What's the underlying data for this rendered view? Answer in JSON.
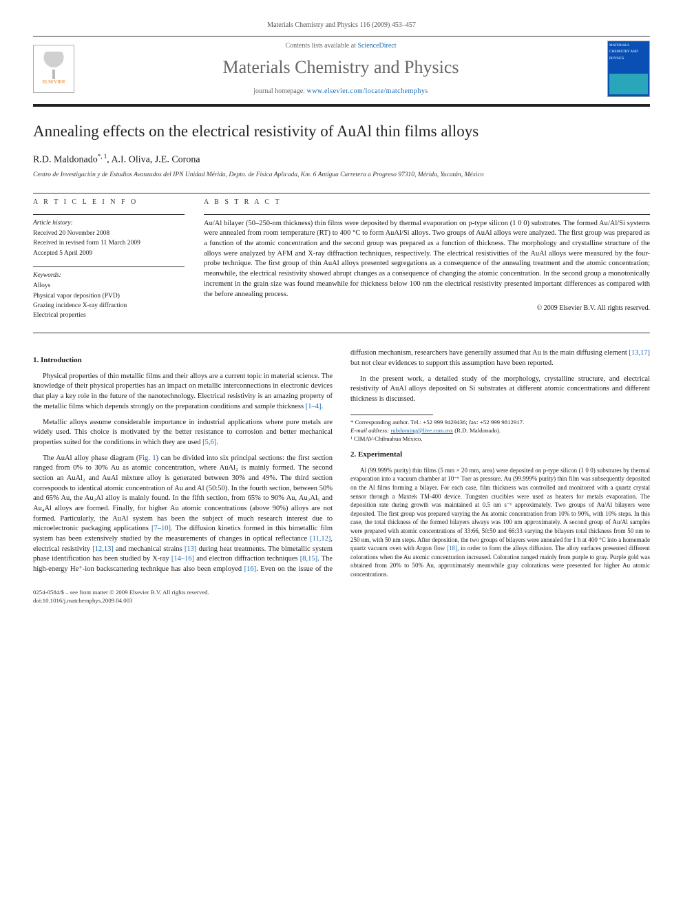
{
  "running_header": "Materials Chemistry and Physics 116 (2009) 453–457",
  "masthead": {
    "publisher_name": "ELSEVIER",
    "contents_prefix": "Contents lists available at ",
    "contents_link": "ScienceDirect",
    "journal_name": "Materials Chemistry and Physics",
    "homepage_prefix": "journal homepage: ",
    "homepage_url": "www.elsevier.com/locate/matchemphys",
    "cover_title_top": "MATERIALS",
    "cover_title_mid": "CHEMISTRY AND",
    "cover_title_bot": "PHYSICS"
  },
  "article": {
    "title": "Annealing effects on the electrical resistivity of AuAl thin films alloys",
    "authors_html": "R.D. Maldonado",
    "author_sup1": "*, 1",
    "author2": ", A.I. Oliva, J.E. Corona",
    "affiliation": "Centro de Investigación y de Estudios Avanzados del IPN Unidad Mérida, Depto. de Física Aplicada, Km. 6 Antigua Carretera a Progreso 97310, Mérida, Yucatán, México"
  },
  "info": {
    "section_label": "a r t i c l e   i n f o",
    "history_label": "Article history:",
    "received": "Received 20 November 2008",
    "revised": "Received in revised form 11 March 2009",
    "accepted": "Accepted 5 April 2009",
    "keywords_label": "Keywords:",
    "kw1": "Alloys",
    "kw2": "Physical vapor deposition (PVD)",
    "kw3": "Grazing incidence X-ray diffraction",
    "kw4": "Electrical properties"
  },
  "abstract": {
    "section_label": "a b s t r a c t",
    "text": "Au/Al bilayer (50–250-nm thickness) thin films were deposited by thermal evaporation on p-type silicon (1 0 0) substrates. The formed Au/Al/Si systems were annealed from room temperature (RT) to 400 °C to form AuAl/Si alloys. Two groups of AuAl alloys were analyzed. The first group was prepared as a function of the atomic concentration and the second group was prepared as a function of thickness. The morphology and crystalline structure of the alloys were analyzed by AFM and X-ray diffraction techniques, respectively. The electrical resistivities of the AuAl alloys were measured by the four-probe technique. The first group of thin AuAl alloys presented segregations as a consequence of the annealing treatment and the atomic concentration; meanwhile, the electrical resistivity showed abrupt changes as a consequence of changing the atomic concentration. In the second group a monotonically increment in the grain size was found meanwhile for thickness below 100 nm the electrical resistivity presented important differences as compared with the before annealing process.",
    "copyright": "© 2009 Elsevier B.V. All rights reserved."
  },
  "body": {
    "intro_heading": "1. Introduction",
    "intro_p1": "Physical properties of thin metallic films and their alloys are a current topic in material science. The knowledge of their physical properties has an impact on metallic interconnections in electronic devices that play a key role in the future of the nanotechnology. Electrical resistivity is an amazing property of the metallic films which depends strongly on the preparation conditions and sample thickness ",
    "intro_p1_ref": "[1–4]",
    "intro_p1_tail": ".",
    "intro_p2": "Metallic alloys assume considerable importance in industrial applications where pure metals are widely used. This choice is motivated by the better resistance to corrosion and better mechanical properties suited for the conditions in which they are used ",
    "intro_p2_ref": "[5,6]",
    "intro_p2_tail": ".",
    "intro_p3a": "The AuAl alloy phase diagram (",
    "intro_p3_fig": "Fig. 1",
    "intro_p3b": ") can be divided into six principal sections: the first section ranged from 0% to 30% Au as atomic concentration, where AuAl₂ is mainly formed. The second section an AuAl₂ and AuAl mixture alloy is generated between 30% and 49%. The third section corresponds to identical atomic concentration of Au and Al (50:50). In the fourth section, between 50% and 65% Au, the Au₂Al alloy is mainly found. In the fifth section, from 65% to 90% Au, Au₂Al₅ and Au₄Al alloys are formed. Finally, for higher Au atomic concentrations (above 90%) alloys are not formed. Particularly, the AuAl system has been the subject of much research interest due to microelectronic packaging applications ",
    "intro_p3_ref": "[7–10]",
    "intro_p3c": ". The diffusion kinetics formed in this bimetallic film system has been extensively studied by the measurements of changes in optical reflectance ",
    "intro_p3_ref2": "[11,12]",
    "intro_p3d": ", electrical resistivity ",
    "intro_p3_ref3": "[12,13]",
    "intro_p3e": " and mechanical strains ",
    "intro_p3_ref4": "[13]",
    "intro_p3f": " during heat treatments. The bimetallic system phase identification has been studied by X-ray ",
    "intro_p3_ref5": "[14–16]",
    "intro_p3g": " and electron diffraction techniques ",
    "intro_p3_ref6": "[8,15]",
    "intro_p3h": ". The high-energy He⁺-ion backscattering technique has also been employed ",
    "intro_p3_ref7": "[16]",
    "intro_p3i": ". Even on the issue of the diffusion mechanism, researchers have generally assumed that Au is the main diffusing element ",
    "intro_p3_ref8": "[13,17]",
    "intro_p3j": " but not clear evidences to support this assumption have been reported.",
    "intro_p4": "In the present work, a detailed study of the morphology, crystalline structure, and electrical resistivity of AuAl alloys deposited on Si substrates at different atomic concentrations and different thickness is discussed.",
    "exp_heading": "2. Experimental",
    "exp_p1a": "Al (99.999% purity) thin films (5 mm × 20 mm, area) were deposited on p-type silicon (1 0 0) substrates by thermal evaporation into a vacuum chamber at 10⁻⁶ Torr as pressure. Au (99.999% purity) thin film was subsequently deposited on the Al films forming a bilayer. For each case, film thickness was controlled and monitored with a quartz crystal sensor through a Maxtek TM-400 device. Tungsten crucibles were used as heaters for metals evaporation. The deposition rate during growth was maintained at 0.5 nm s⁻¹ approximately. Two groups of Au/Al bilayers were deposited. The first group was prepared varying the Au atomic concentration from 10% to 90%, with 10% steps. In this case, the total thickness of the formed bilayers always was 100 nm approximately. A second group of Au/Al samples were prepared with atomic concentrations of 33:66, 50:50 and 66:33 varying the bilayers total thickness from 50 nm to 250 nm, with 50 nm steps. After deposition, the two groups of bilayers were annealed for 1 h at 400 °C into a homemade quartz vacuum oven with Argon flow ",
    "exp_p1_ref": "[18]",
    "exp_p1b": ", in order to form the alloys diffusion. The alloy surfaces presented different colorations when the Au atomic concentration increased. Coloration ranged mainly from purple to gray. Purple gold was obtained from 20% to 50% Au, approximately meanwhile gray colorations were presented for higher Au atomic concentrations."
  },
  "footnotes": {
    "corr": "* Corresponding author. Tel.: +52 999 9429436; fax: +52 999 9812917.",
    "email_label": "E-mail address: ",
    "email": "rubdoming@live.com.mx",
    "email_tail": " (R.D. Maldonado).",
    "note1": "¹ CIMAV-Chihuahua México."
  },
  "footer": {
    "left_line1": "0254-0584/$ – see front matter © 2009 Elsevier B.V. All rights reserved.",
    "left_line2": "doi:10.1016/j.matchemphys.2009.04.003"
  },
  "colors": {
    "link": "#1668b3",
    "publisher_orange": "#e67817",
    "cover_blue": "#0a4fb3"
  }
}
